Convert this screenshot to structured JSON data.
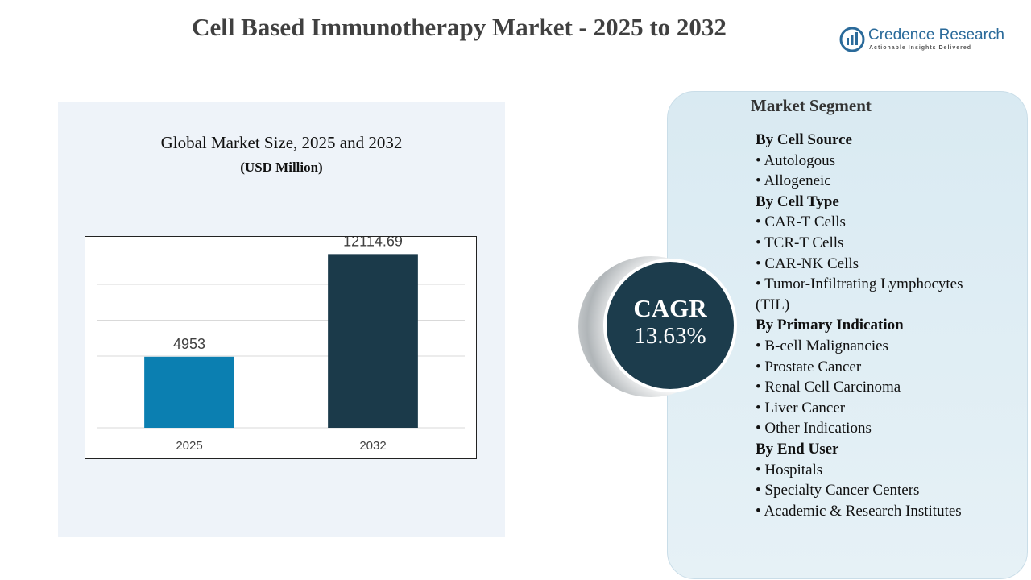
{
  "header": {
    "title": "Cell Based Immunotherapy  Market - 2025 to 2032",
    "logo_name": "Credence Research",
    "logo_tagline": "Actionable Insights Delivered"
  },
  "chart_data": {
    "type": "bar",
    "title": "Global Market Size, 2025 and 2032",
    "subtitle": "(USD Million)",
    "categories": [
      "2025",
      "2032"
    ],
    "values": [
      4953,
      12114.69
    ],
    "colors": [
      "#0b7fb1",
      "#1b3a4a"
    ],
    "ylim": [
      0,
      12500
    ],
    "yticks": [
      0,
      2500,
      5000,
      7500,
      10000
    ],
    "grid": true
  },
  "cagr": {
    "label": "CAGR",
    "value": "13.63%"
  },
  "segments": {
    "title": "Market Segment",
    "groups": [
      {
        "heading": "By Cell Source",
        "items": [
          "Autologous",
          "Allogeneic"
        ]
      },
      {
        "heading": "By Cell Type",
        "items": [
          "CAR-T Cells",
          "TCR-T Cells",
          "CAR-NK Cells",
          "Tumor-Infiltrating Lymphocytes (TIL)"
        ]
      },
      {
        "heading": "By Primary Indication",
        "items": [
          "B-cell Malignancies",
          "Prostate Cancer",
          "Renal Cell Carcinoma",
          "Liver Cancer",
          "Other Indications"
        ]
      },
      {
        "heading": "By End User",
        "items": [
          "Hospitals",
          "Specialty Cancer Centers",
          "Academic & Research Institutes"
        ]
      }
    ]
  }
}
